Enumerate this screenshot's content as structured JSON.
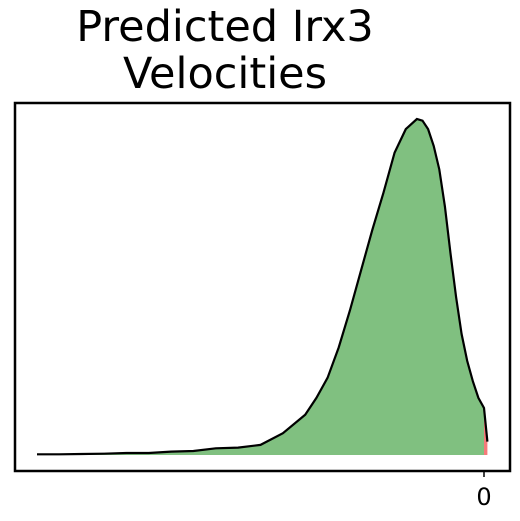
{
  "chart_data": {
    "type": "area",
    "title": "Predicted Irx3\nVelocities",
    "xlabel": "",
    "ylabel": "",
    "x_ticks": [
      0
    ],
    "x_tick_labels": [
      "0"
    ],
    "grid": false,
    "series": [
      {
        "kind": "density",
        "x": [
          -4.0,
          -3.8,
          -3.6,
          -3.4,
          -3.2,
          -3.0,
          -2.8,
          -2.6,
          -2.4,
          -2.2,
          -2.0,
          -1.8,
          -1.6,
          -1.5,
          -1.4,
          -1.3,
          -1.2,
          -1.1,
          -1.0,
          -0.9,
          -0.8,
          -0.7,
          -0.6,
          -0.55,
          -0.5,
          -0.45,
          -0.4,
          -0.35,
          -0.3,
          -0.25,
          -0.2,
          -0.15,
          -0.1,
          -0.05,
          0.0,
          0.03
        ],
        "density": [
          0.002,
          0.002,
          0.003,
          0.004,
          0.006,
          0.006,
          0.01,
          0.012,
          0.02,
          0.022,
          0.03,
          0.065,
          0.12,
          0.17,
          0.23,
          0.32,
          0.43,
          0.55,
          0.67,
          0.78,
          0.9,
          0.97,
          1.0,
          0.995,
          0.97,
          0.92,
          0.85,
          0.74,
          0.6,
          0.47,
          0.36,
          0.28,
          0.22,
          0.17,
          0.14,
          0.04
        ],
        "positive_threshold": 0.0
      }
    ],
    "fill_colors": {
      "negative": "#80c080",
      "positive": "#f57a7a"
    },
    "line_color": "#000000"
  }
}
